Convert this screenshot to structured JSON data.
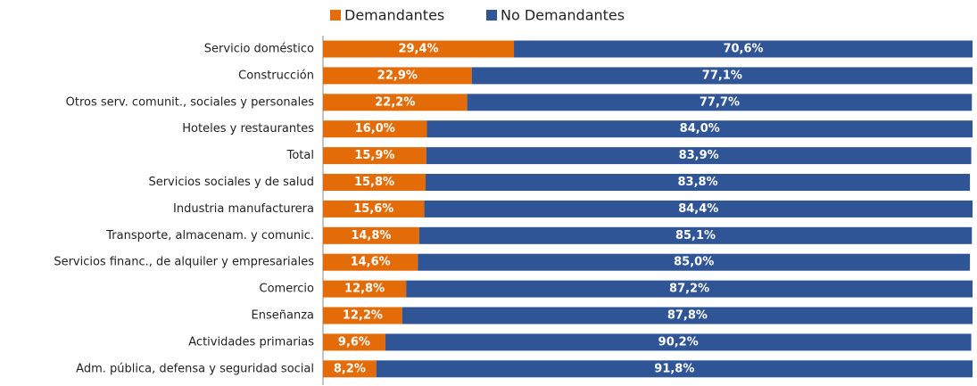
{
  "chart_data": {
    "type": "stacked_barh",
    "categories": [
      "Servicio doméstico",
      "Construcción",
      "Otros serv. comunit., sociales y personales",
      "Hoteles y restaurantes",
      "Total",
      "Servicios sociales y de salud",
      "Industria manufacturera",
      "Transporte, almacenam. y comunic.",
      "Servicios financ., de alquiler y empresariales",
      "Comercio",
      "Enseñanza",
      "Actividades primarias",
      "Adm. pública, defensa y seguridad social"
    ],
    "series": [
      {
        "name": "Demandantes",
        "color": "#e36c09",
        "values": [
          29.4,
          22.9,
          22.2,
          16.0,
          15.9,
          15.8,
          15.6,
          14.8,
          14.6,
          12.8,
          12.2,
          9.6,
          8.2
        ],
        "value_labels": [
          "29,4%",
          "22,9%",
          "22,2%",
          "16,0%",
          "15,9%",
          "15,8%",
          "15,6%",
          "14,8%",
          "14,6%",
          "12,8%",
          "12,2%",
          "9,6%",
          "8,2%"
        ]
      },
      {
        "name": "No Demandantes",
        "color": "#2f5597",
        "values": [
          70.6,
          77.1,
          77.7,
          84.0,
          83.9,
          83.8,
          84.4,
          85.1,
          85.0,
          87.2,
          87.8,
          90.2,
          91.8
        ],
        "value_labels": [
          "70,6%",
          "77,1%",
          "77,7%",
          "84,0%",
          "83,9%",
          "83,8%",
          "84,4%",
          "85,1%",
          "85,0%",
          "87,2%",
          "87,8%",
          "90,2%",
          "91,8%"
        ]
      }
    ],
    "xlim": [
      0,
      100
    ],
    "legend": "top"
  }
}
